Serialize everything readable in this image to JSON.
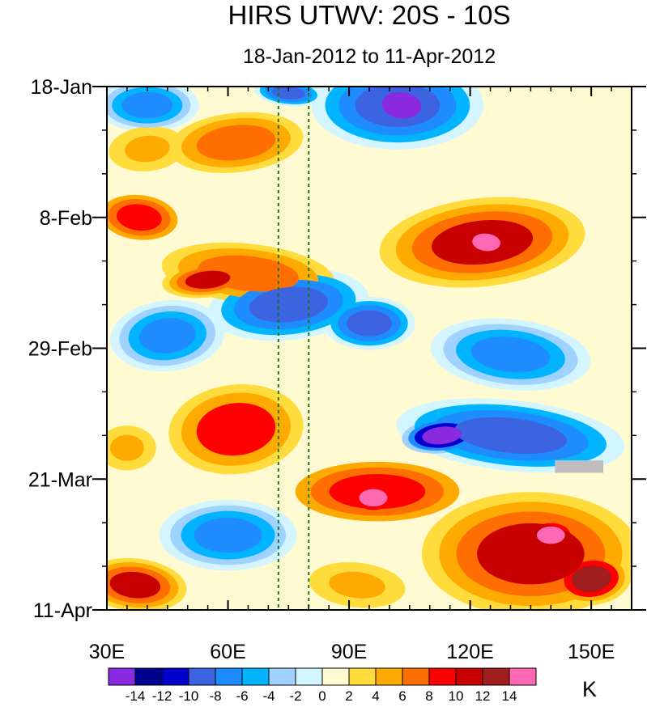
{
  "chart_data": {
    "type": "heatmap",
    "title": "HIRS UTWV: 20S - 10S",
    "subtitle": "18-Jan-2012 to 11-Apr-2012",
    "x_axis": {
      "range": [
        30,
        160
      ],
      "ticks": [
        {
          "value": 30,
          "label": "30E"
        },
        {
          "value": 60,
          "label": "60E"
        },
        {
          "value": 90,
          "label": "90E"
        },
        {
          "value": 120,
          "label": "120E"
        },
        {
          "value": 150,
          "label": "150E"
        }
      ],
      "minor_step": 5
    },
    "y_axis": {
      "range_days": [
        0,
        84
      ],
      "ticks": [
        {
          "day": 0,
          "label": "18-Jan"
        },
        {
          "day": 21,
          "label": "8-Feb"
        },
        {
          "day": 42,
          "label": "29-Feb"
        },
        {
          "day": 63,
          "label": "21-Mar"
        },
        {
          "day": 84,
          "label": "11-Apr"
        }
      ],
      "minor_step_days": 7
    },
    "reference_lines_lon": [
      72.5,
      80
    ],
    "reference_line_color": "#1a7a1a",
    "missing_color": "#bebebe",
    "colorbar": {
      "unit": "K",
      "level_labels": [
        "-14",
        "-12",
        "-10",
        "-8",
        "-6",
        "-4",
        "-2",
        "0",
        "2",
        "4",
        "6",
        "8",
        "10",
        "12",
        "14"
      ],
      "levels": [
        -14,
        -12,
        -10,
        -8,
        -6,
        -4,
        -2,
        0,
        2,
        4,
        6,
        8,
        10,
        12,
        14
      ],
      "colors": [
        "#8a2be2",
        "#000090",
        "#0000cd",
        "#3c64e0",
        "#1e8cff",
        "#00b4ff",
        "#a0d2ff",
        "#d2f5ff",
        "#fffad2",
        "#ffdc3c",
        "#ffaa00",
        "#ff6e00",
        "#ff0000",
        "#c80000",
        "#a01e1e",
        "#ff69b4"
      ]
    },
    "features": [
      {
        "lon": 103,
        "day": 3,
        "rx": 7,
        "ry": 3,
        "value": -16
      },
      {
        "lon": 102,
        "day": 3,
        "rx": 15,
        "ry": 5,
        "value": -9
      },
      {
        "lon": 40,
        "day": 3,
        "rx": 9,
        "ry": 3,
        "value": -7
      },
      {
        "lon": 75,
        "day": 1,
        "rx": 6,
        "ry": 1.5,
        "value": -10
      },
      {
        "lon": 62,
        "day": 9,
        "rx": 14,
        "ry": 4,
        "value": 6
      },
      {
        "lon": 40,
        "day": 10,
        "rx": 8,
        "ry": 3,
        "value": 5
      },
      {
        "lon": 38,
        "day": 21,
        "rx": 8,
        "ry": 3,
        "value": 9
      },
      {
        "lon": 123,
        "day": 25,
        "rx": 18,
        "ry": 5,
        "value": 11
      },
      {
        "lon": 124,
        "day": 25,
        "rx": 5,
        "ry": 2,
        "value": 15
      },
      {
        "lon": 65,
        "day": 30,
        "rx": 18,
        "ry": 4,
        "value": 7
      },
      {
        "lon": 55,
        "day": 31,
        "rx": 8,
        "ry": 2,
        "value": 10
      },
      {
        "lon": 75,
        "day": 35,
        "rx": 14,
        "ry": 4,
        "value": -9
      },
      {
        "lon": 95,
        "day": 38,
        "rx": 8,
        "ry": 3,
        "value": -10
      },
      {
        "lon": 45,
        "day": 40,
        "rx": 10,
        "ry": 4,
        "value": -7
      },
      {
        "lon": 130,
        "day": 43,
        "rx": 14,
        "ry": 4,
        "value": -8
      },
      {
        "lon": 130,
        "day": 56,
        "rx": 20,
        "ry": 4,
        "value": -10
      },
      {
        "lon": 113,
        "day": 56,
        "rx": 7,
        "ry": 2,
        "value": -15
      },
      {
        "lon": 62,
        "day": 55,
        "rx": 14,
        "ry": 6,
        "value": 8
      },
      {
        "lon": 35,
        "day": 58,
        "rx": 6,
        "ry": 3,
        "value": 5
      },
      {
        "lon": 97,
        "day": 65,
        "rx": 17,
        "ry": 4,
        "value": 9
      },
      {
        "lon": 96,
        "day": 66,
        "rx": 5,
        "ry": 2,
        "value": 15
      },
      {
        "lon": 135,
        "day": 75,
        "rx": 19,
        "ry": 7,
        "value": 11
      },
      {
        "lon": 140,
        "day": 72,
        "rx": 5,
        "ry": 2,
        "value": 14
      },
      {
        "lon": 150,
        "day": 79,
        "rx": 7,
        "ry": 3,
        "value": 13
      },
      {
        "lon": 37,
        "day": 80,
        "rx": 9,
        "ry": 3,
        "value": 11
      },
      {
        "lon": 92,
        "day": 80,
        "rx": 10,
        "ry": 3,
        "value": 5
      },
      {
        "lon": 60,
        "day": 72,
        "rx": 12,
        "ry": 4,
        "value": -7
      }
    ],
    "missing_regions": [
      {
        "lon": 147,
        "day": 61,
        "rx": 6,
        "ry": 1
      }
    ]
  }
}
